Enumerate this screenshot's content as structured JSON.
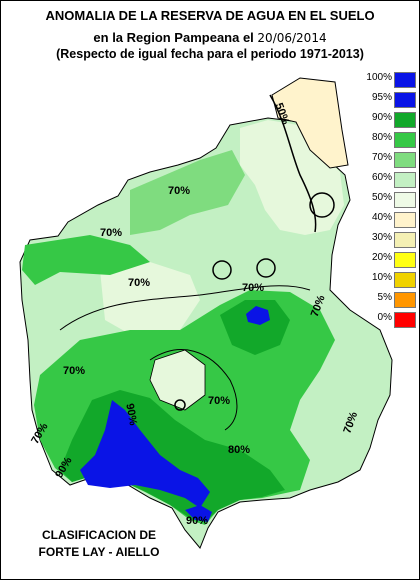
{
  "title": {
    "line1": "ANOMALIA DE LA RESERVA DE AGUA EN EL SUELO",
    "line2_prefix": "en la Region Pampeana el",
    "date": "20/06/2014",
    "line3": "(Respecto de igual fecha para el periodo 1971-2013)"
  },
  "credit": {
    "line1": "CLASIFICACION DE",
    "line2": "FORTE LAY - AIELLO"
  },
  "legend": [
    {
      "label": "100%",
      "color": "#0a14e6"
    },
    {
      "label": "95%",
      "color": "#0a14e6"
    },
    {
      "label": "90%",
      "color": "#12a82a"
    },
    {
      "label": "80%",
      "color": "#36c846"
    },
    {
      "label": "70%",
      "color": "#7fdc7f"
    },
    {
      "label": "60%",
      "color": "#c3f0c3"
    },
    {
      "label": "50%",
      "color": "#eefae6"
    },
    {
      "label": "40%",
      "color": "#fff3cc"
    },
    {
      "label": "30%",
      "color": "#f4f0b4"
    },
    {
      "label": "20%",
      "color": "#ffff14"
    },
    {
      "label": "10%",
      "color": "#f0d200"
    },
    {
      "label": "5%",
      "color": "#ff9600"
    },
    {
      "label": "0%",
      "color": "#ff0000"
    }
  ],
  "contour_labels": [
    {
      "text": "50%"
    },
    {
      "text": "70%"
    },
    {
      "text": "70%"
    },
    {
      "text": "70%"
    },
    {
      "text": "70%"
    },
    {
      "text": "70%"
    },
    {
      "text": "70%"
    },
    {
      "text": "70%"
    },
    {
      "text": "70%"
    },
    {
      "text": "70%"
    },
    {
      "text": "90%"
    },
    {
      "text": "90%"
    },
    {
      "text": "80%"
    },
    {
      "text": "90%"
    }
  ]
}
